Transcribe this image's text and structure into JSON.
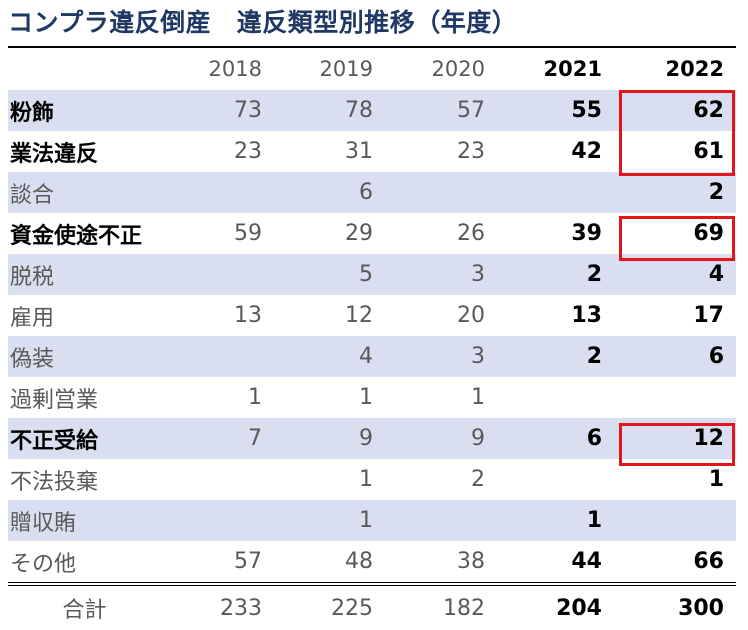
{
  "title": "コンプラ違反倒産　違反類型別推移（年度）",
  "table": {
    "columns": [
      "",
      "2018",
      "2019",
      "2020",
      "2021",
      "2022"
    ],
    "rows": [
      {
        "label": "粉飾",
        "values": [
          "73",
          "78",
          "57",
          "55",
          "62"
        ]
      },
      {
        "label": "業法違反",
        "values": [
          "23",
          "31",
          "23",
          "42",
          "61"
        ]
      },
      {
        "label": "談合",
        "values": [
          "",
          "6",
          "",
          "",
          "2"
        ]
      },
      {
        "label": "資金使途不正",
        "values": [
          "59",
          "29",
          "26",
          "39",
          "69"
        ]
      },
      {
        "label": "脱税",
        "values": [
          "",
          "5",
          "3",
          "2",
          "4"
        ]
      },
      {
        "label": "雇用",
        "values": [
          "13",
          "12",
          "20",
          "13",
          "17"
        ]
      },
      {
        "label": "偽装",
        "values": [
          "",
          "4",
          "3",
          "2",
          "6"
        ]
      },
      {
        "label": "過剰営業",
        "values": [
          "1",
          "1",
          "1",
          "",
          ""
        ]
      },
      {
        "label": "不正受給",
        "values": [
          "7",
          "9",
          "9",
          "6",
          "12"
        ]
      },
      {
        "label": "不法投棄",
        "values": [
          "",
          "1",
          "2",
          "",
          "1"
        ]
      },
      {
        "label": "贈収賄",
        "values": [
          "",
          "1",
          "",
          "1",
          ""
        ]
      },
      {
        "label": "その他",
        "values": [
          "57",
          "48",
          "38",
          "44",
          "66"
        ]
      }
    ],
    "total": {
      "label": "合計",
      "values": [
        "233",
        "225",
        "182",
        "204",
        "300"
      ]
    }
  },
  "colors": {
    "title": "#1f3864",
    "row_shade": "#d9dff0",
    "highlight_border": "#e2151b"
  }
}
